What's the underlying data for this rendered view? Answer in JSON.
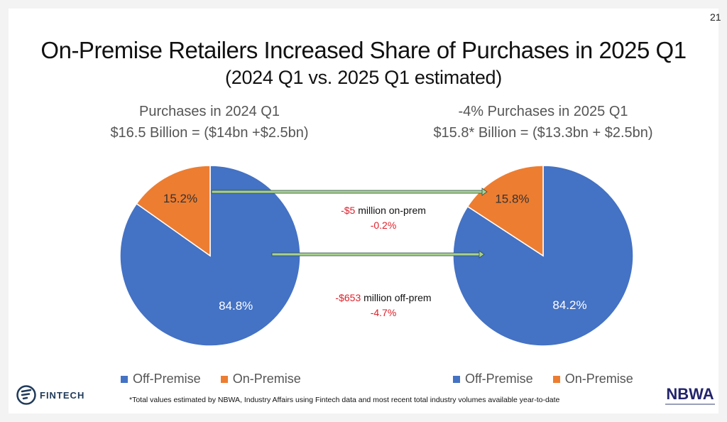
{
  "page_number": "21",
  "title": "On-Premise Retailers Increased Share of Purchases in 2025 Q1",
  "subtitle": "(2024 Q1 vs. 2025 Q1 estimated)",
  "left_header": {
    "line1": "Purchases in 2024 Q1",
    "line2": "$16.5 Billion = ($14bn +$2.5bn)"
  },
  "right_header": {
    "line1": "-4% Purchases in 2025 Q1",
    "line2": "$15.8* Billion = ($13.3bn  + $2.5bn)"
  },
  "annotations": {
    "on_prem": {
      "amount": "-$5",
      "text": " million on-prem",
      "pct": "-0.2%"
    },
    "off_prem": {
      "amount": "-$653",
      "text": " million off-prem",
      "pct": "-4.7%"
    }
  },
  "legend": {
    "off": "Off-Premise",
    "on": "On-Premise"
  },
  "footnote": "*Total values estimated by NBWA, Industry Affairs using Fintech data and most recent total industry volumes available year-to-date",
  "logos": {
    "left": "FINTECH",
    "right": "NBWA"
  },
  "colors": {
    "off_premise": "#4472c4",
    "on_premise": "#ed7d31",
    "arrow_fill": "#a9d18e",
    "arrow_stroke": "#2f4f4f",
    "red": "#e0202a"
  },
  "chart_data": [
    {
      "type": "pie",
      "title": "Purchases in 2024 Q1",
      "categories": [
        "Off-Premise",
        "On-Premise"
      ],
      "values": [
        84.8,
        15.2
      ],
      "labels": [
        "84.8%",
        "15.2%"
      ],
      "legend_position": "bottom"
    },
    {
      "type": "pie",
      "title": "-4% Purchases in 2025 Q1",
      "categories": [
        "Off-Premise",
        "On-Premise"
      ],
      "values": [
        84.2,
        15.8
      ],
      "labels": [
        "84.2%",
        "15.8%"
      ],
      "legend_position": "bottom"
    }
  ]
}
